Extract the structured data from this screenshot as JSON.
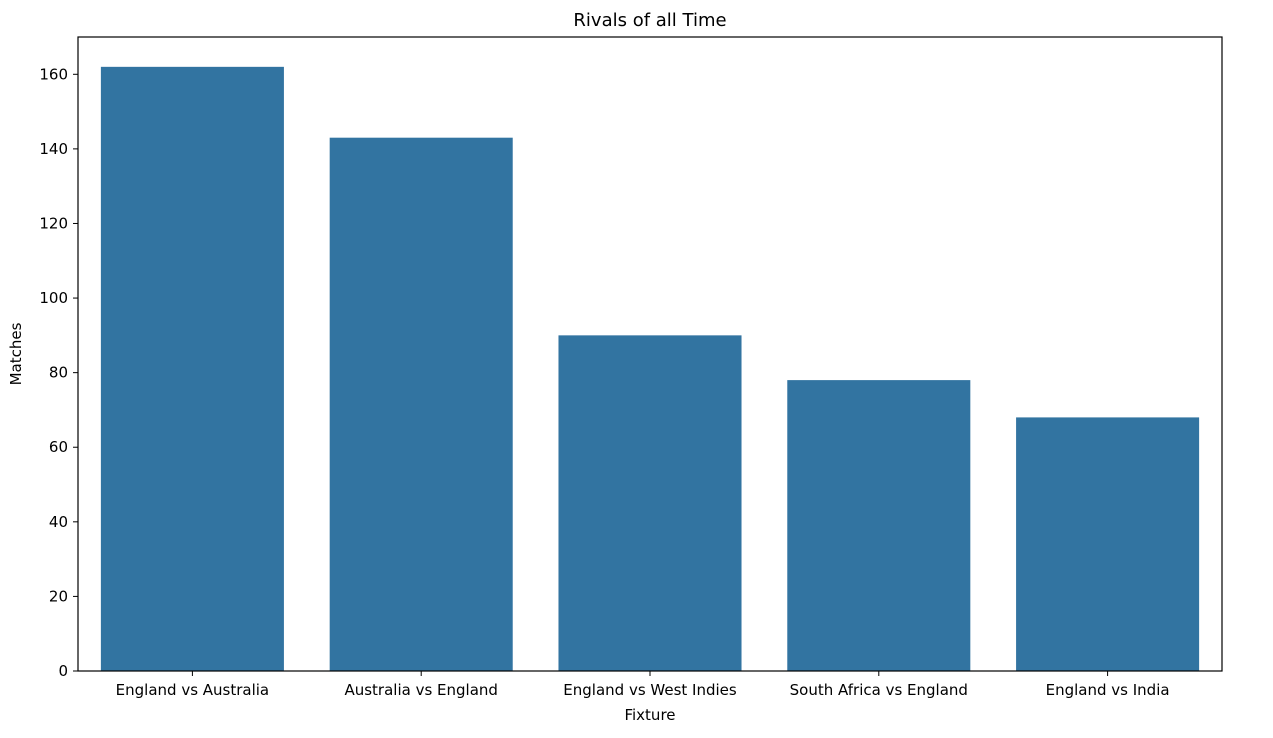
{
  "chart_data": {
    "type": "bar",
    "title": "Rivals of all Time",
    "xlabel": "Fixture",
    "ylabel": "Matches",
    "categories": [
      "England vs Australia",
      "Australia vs England",
      "England vs West Indies",
      "South Africa vs England",
      "England vs India"
    ],
    "values": [
      162,
      143,
      90,
      78,
      68
    ],
    "ylim": [
      0,
      170
    ],
    "yticks": [
      0,
      20,
      40,
      60,
      80,
      100,
      120,
      140,
      160
    ],
    "ytick_labels": [
      "0",
      "20",
      "40",
      "60",
      "80",
      "100",
      "120",
      "140",
      "160"
    ],
    "grid": false,
    "legend": "none",
    "bar_color": "#3274a1"
  }
}
